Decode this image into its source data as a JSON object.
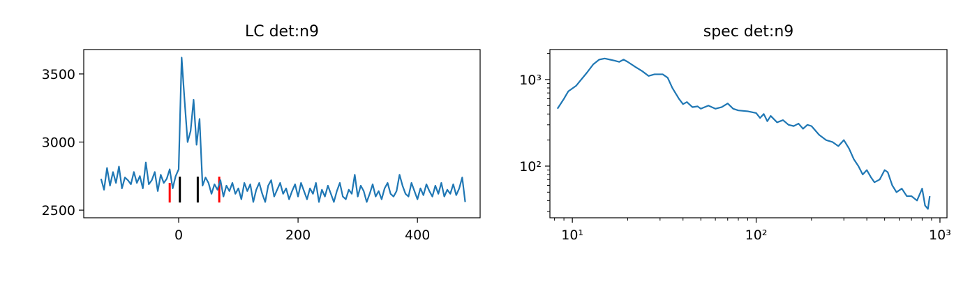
{
  "chart_data": [
    {
      "type": "line",
      "title": "LC det:n9",
      "x": [
        -130,
        -125,
        -120,
        -115,
        -110,
        -105,
        -100,
        -95,
        -90,
        -85,
        -80,
        -75,
        -70,
        -65,
        -60,
        -55,
        -50,
        -45,
        -40,
        -35,
        -30,
        -25,
        -20,
        -15,
        -10,
        -5,
        0,
        5,
        10,
        15,
        20,
        25,
        30,
        35,
        40,
        45,
        50,
        55,
        60,
        65,
        70,
        75,
        80,
        85,
        90,
        95,
        100,
        105,
        110,
        115,
        120,
        125,
        130,
        135,
        140,
        145,
        150,
        155,
        160,
        165,
        170,
        175,
        180,
        185,
        190,
        195,
        200,
        205,
        210,
        215,
        220,
        225,
        230,
        235,
        240,
        245,
        250,
        255,
        260,
        265,
        270,
        275,
        280,
        285,
        290,
        295,
        300,
        305,
        310,
        315,
        320,
        325,
        330,
        335,
        340,
        345,
        350,
        355,
        360,
        365,
        370,
        375,
        380,
        385,
        390,
        395,
        400,
        405,
        410,
        415,
        420,
        425,
        430,
        435,
        440,
        445,
        450,
        455,
        460,
        465,
        470,
        475,
        480
      ],
      "series": [
        {
          "color": "#1f77b4",
          "values": [
            2730,
            2650,
            2810,
            2680,
            2780,
            2700,
            2820,
            2660,
            2740,
            2720,
            2690,
            2780,
            2700,
            2750,
            2660,
            2850,
            2690,
            2720,
            2780,
            2640,
            2760,
            2700,
            2730,
            2800,
            2660,
            2750,
            2800,
            3620,
            3300,
            3000,
            3080,
            3310,
            2980,
            3170,
            2680,
            2740,
            2700,
            2620,
            2690,
            2650,
            2720,
            2600,
            2680,
            2640,
            2700,
            2620,
            2660,
            2580,
            2700,
            2640,
            2690,
            2560,
            2650,
            2700,
            2620,
            2560,
            2680,
            2720,
            2600,
            2650,
            2700,
            2620,
            2660,
            2580,
            2640,
            2690,
            2600,
            2700,
            2640,
            2580,
            2660,
            2620,
            2700,
            2560,
            2650,
            2600,
            2680,
            2620,
            2560,
            2640,
            2700,
            2600,
            2580,
            2650,
            2620,
            2760,
            2600,
            2680,
            2640,
            2560,
            2620,
            2690,
            2600,
            2640,
            2580,
            2660,
            2700,
            2620,
            2600,
            2640,
            2760,
            2680,
            2620,
            2600,
            2700,
            2640,
            2580,
            2660,
            2610,
            2690,
            2640,
            2600,
            2680,
            2620,
            2700,
            2600,
            2650,
            2620,
            2690,
            2610,
            2660,
            2740,
            2560
          ]
        }
      ],
      "vlines": [
        {
          "x": -15,
          "ymin": 2556,
          "ymax": 2700,
          "color": "#ff0000"
        },
        {
          "x": 2,
          "ymin": 2556,
          "ymax": 2746,
          "color": "#000000"
        },
        {
          "x": 32,
          "ymin": 2556,
          "ymax": 2746,
          "color": "#000000"
        },
        {
          "x": 68,
          "ymin": 2556,
          "ymax": 2746,
          "color": "#ff0000"
        }
      ],
      "xlim": [
        -159,
        505
      ],
      "ylim": [
        2444,
        3679
      ],
      "xticks": [
        0,
        200,
        400
      ],
      "yticks": [
        2500,
        3000,
        3500
      ]
    },
    {
      "type": "line",
      "title": "spec det:n9",
      "xscale": "log",
      "yscale": "log",
      "color": "#1f77b4",
      "x": [
        8.3,
        9,
        9.5,
        10.5,
        11,
        12,
        13,
        14,
        15,
        16,
        17,
        18,
        19,
        20,
        22,
        24,
        26,
        28,
        31,
        33,
        35,
        38,
        40,
        42,
        45,
        48,
        50,
        55,
        60,
        65,
        70,
        75,
        80,
        90,
        100,
        105,
        110,
        115,
        120,
        130,
        140,
        150,
        160,
        170,
        180,
        190,
        200,
        220,
        240,
        260,
        280,
        300,
        320,
        340,
        360,
        380,
        400,
        420,
        440,
        470,
        500,
        520,
        550,
        580,
        620,
        660,
        700,
        750,
        800,
        830,
        860,
        880
      ],
      "values": [
        460,
        600,
        730,
        850,
        960,
        1200,
        1500,
        1700,
        1750,
        1700,
        1650,
        1600,
        1700,
        1600,
        1400,
        1250,
        1100,
        1150,
        1150,
        1050,
        800,
        600,
        520,
        550,
        480,
        490,
        460,
        500,
        460,
        480,
        530,
        460,
        440,
        430,
        410,
        360,
        400,
        330,
        380,
        320,
        340,
        300,
        290,
        310,
        270,
        300,
        290,
        230,
        200,
        190,
        170,
        200,
        160,
        120,
        100,
        80,
        90,
        75,
        65,
        70,
        90,
        85,
        60,
        50,
        55,
        45,
        45,
        40,
        55,
        35,
        32,
        45
      ],
      "xlim": [
        7.55,
        1092
      ],
      "ylim": [
        25.3,
        2220
      ],
      "xticks": [
        {
          "value": 10,
          "label": "10¹"
        },
        {
          "value": 100,
          "label": "10²"
        },
        {
          "value": 1000,
          "label": "10³"
        }
      ],
      "yticks": [
        {
          "value": 100,
          "label": "10²"
        },
        {
          "value": 1000,
          "label": "10³"
        }
      ],
      "xminorticks": [
        8,
        9,
        20,
        30,
        40,
        50,
        60,
        70,
        80,
        90,
        200,
        300,
        400,
        500,
        600,
        700,
        800,
        900
      ],
      "yminorticks": [
        30,
        40,
        50,
        60,
        70,
        80,
        90,
        200,
        300,
        400,
        500,
        600,
        700,
        800,
        900,
        2000
      ]
    }
  ]
}
